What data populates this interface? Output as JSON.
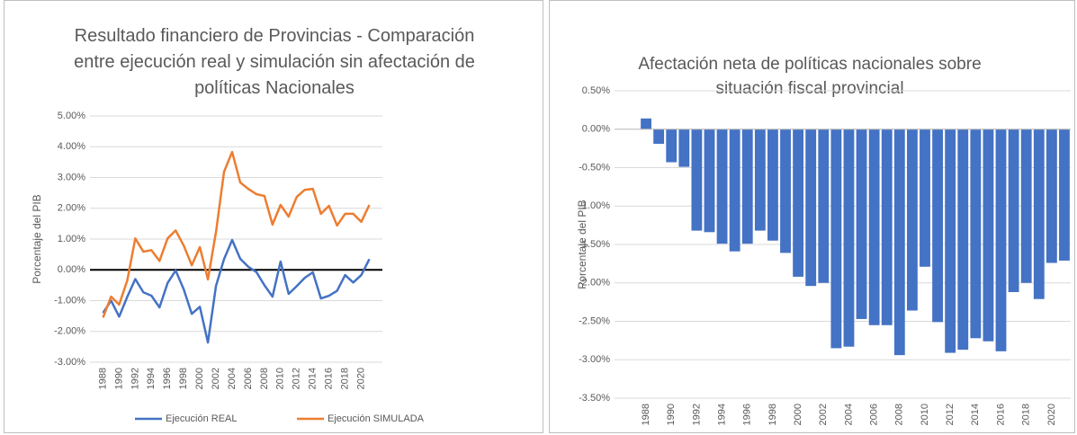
{
  "chart_data": [
    {
      "type": "line",
      "title": "Resultado financiero de Provincias - Comparación entre ejecución real y simulación sin afectación de políticas Nacionales",
      "y_label": "Porcentaje del PIB",
      "categories": [
        "1988",
        null,
        "1990",
        null,
        "1992",
        null,
        "1994",
        null,
        "1996",
        null,
        "1998",
        null,
        "2000",
        null,
        "2002",
        null,
        "2004",
        null,
        "2006",
        null,
        "2008",
        null,
        "2010",
        null,
        "2012",
        null,
        "2014",
        null,
        "2016",
        null,
        "2018",
        null,
        "2020",
        null
      ],
      "series": [
        {
          "name": "Ejecución REAL",
          "color": "#4472c4",
          "values": [
            -1.4,
            -1.0,
            -1.52,
            -0.88,
            -0.3,
            -0.73,
            -0.84,
            -1.22,
            -0.43,
            -0.02,
            -0.63,
            -1.43,
            -1.2,
            -2.36,
            -0.52,
            0.35,
            0.97,
            0.36,
            0.1,
            -0.07,
            -0.5,
            -0.87,
            0.27,
            -0.78,
            -0.53,
            -0.26,
            -0.08,
            -0.93,
            -0.84,
            -0.68,
            -0.17,
            -0.41,
            -0.17,
            0.35
          ]
        },
        {
          "name": "Ejecución SIMULADA",
          "color": "#ed7d31",
          "values": [
            -1.55,
            -0.87,
            -1.13,
            -0.35,
            1.02,
            0.59,
            0.64,
            0.29,
            1.02,
            1.28,
            0.79,
            0.15,
            0.74,
            -0.31,
            1.23,
            3.19,
            3.83,
            2.84,
            2.63,
            2.46,
            2.4,
            1.47,
            2.11,
            1.73,
            2.37,
            2.6,
            2.63,
            1.82,
            2.08,
            1.44,
            1.82,
            1.82,
            1.56,
            2.11
          ]
        }
      ],
      "ylim": [
        -3,
        5
      ],
      "yticks": [
        {
          "value": -3,
          "label": "-3.00%"
        },
        {
          "value": -2,
          "label": "-2.00%"
        },
        {
          "value": -1,
          "label": "-1.00%"
        },
        {
          "value": 0,
          "label": "0.00%"
        },
        {
          "value": 1,
          "label": "1.00%"
        },
        {
          "value": 2,
          "label": "2.00%"
        },
        {
          "value": 3,
          "label": "3.00%"
        },
        {
          "value": 4,
          "label": "4.00%"
        },
        {
          "value": 5,
          "label": "5.00%"
        }
      ],
      "grid": true,
      "legend": "bottom"
    },
    {
      "type": "bar",
      "title": "Afectación neta de políticas nacionales sobre situación fiscal provincial",
      "y_label": "Porcentaje del PIB",
      "categories": [
        "1988",
        null,
        "1990",
        null,
        "1992",
        null,
        "1994",
        null,
        "1996",
        null,
        "1998",
        null,
        "2000",
        null,
        "2002",
        null,
        "2004",
        null,
        "2006",
        null,
        "2008",
        null,
        "2010",
        null,
        "2012",
        null,
        "2014",
        null,
        "2016",
        null,
        "2018",
        null,
        "2020",
        null
      ],
      "values": [
        0.14,
        -0.19,
        -0.43,
        -0.49,
        -1.32,
        -1.34,
        -1.49,
        -1.59,
        -1.49,
        -1.32,
        -1.45,
        -1.61,
        -1.92,
        -2.04,
        -2.0,
        -2.85,
        -2.83,
        -2.47,
        -2.55,
        -2.55,
        -2.94,
        -2.36,
        -1.79,
        -2.51,
        -2.91,
        -2.87,
        -2.72,
        -2.76,
        -2.89,
        -2.12,
        -2.0,
        -2.21,
        -1.74,
        -1.71
      ],
      "color": "#4472c4",
      "ylim": [
        -3.5,
        0.5
      ],
      "yticks": [
        {
          "value": -3.5,
          "label": "-3.50%"
        },
        {
          "value": -3,
          "label": "-3.00%"
        },
        {
          "value": -2.5,
          "label": "-2.50%"
        },
        {
          "value": -2,
          "label": "-2.00%"
        },
        {
          "value": -1.5,
          "label": "-1.50%"
        },
        {
          "value": -1,
          "label": "-1.00%"
        },
        {
          "value": -0.5,
          "label": "-0.50%"
        },
        {
          "value": 0,
          "label": "0.00%"
        },
        {
          "value": 0.5,
          "label": "0.50%"
        }
      ],
      "grid": true
    }
  ]
}
